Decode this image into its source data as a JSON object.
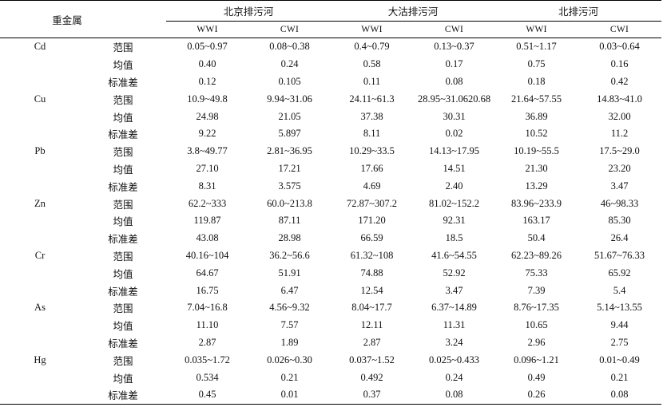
{
  "header": {
    "metal_col": "重金属",
    "groups": [
      "北京排污河",
      "大沽排污河",
      "北排污河"
    ],
    "subcols": [
      "WWI",
      "CWI",
      "WWI",
      "CWI",
      "WWI",
      "CWI"
    ]
  },
  "stat_labels": [
    "范围",
    "均值",
    "标准差"
  ],
  "rows": [
    {
      "metal": "Cd",
      "range": [
        "0.05~0.97",
        "0.08~0.38",
        "0.4~0.79",
        "0.13~0.37",
        "0.51~1.17",
        "0.03~0.64"
      ],
      "mean": [
        "0.40",
        "0.24",
        "0.58",
        "0.17",
        "0.75",
        "0.16"
      ],
      "sd": [
        "0.12",
        "0.105",
        "0.11",
        "0.08",
        "0.18",
        "0.42"
      ]
    },
    {
      "metal": "Cu",
      "range": [
        "10.9~49.8",
        "9.94~31.06",
        "24.11~61.3",
        "28.95~31.0620.68",
        "21.64~57.55",
        "14.83~41.0"
      ],
      "mean": [
        "24.98",
        "21.05",
        "37.38",
        "30.31",
        "36.89",
        "32.00"
      ],
      "sd": [
        "9.22",
        "5.897",
        "8.11",
        "0.02",
        "10.52",
        "11.2"
      ]
    },
    {
      "metal": "Pb",
      "range": [
        "3.8~49.77",
        "2.81~36.95",
        "10.29~33.5",
        "14.13~17.95",
        "10.19~55.5",
        "17.5~29.0"
      ],
      "mean": [
        "27.10",
        "17.21",
        "17.66",
        "14.51",
        "21.30",
        "23.20"
      ],
      "sd": [
        "8.31",
        "3.575",
        "4.69",
        "2.40",
        "13.29",
        "3.47"
      ]
    },
    {
      "metal": "Zn",
      "range": [
        "62.2~333",
        "60.0~213.8",
        "72.87~307.2",
        "81.02~152.2",
        "83.96~233.9",
        "46~98.33"
      ],
      "mean": [
        "119.87",
        "87.11",
        "171.20",
        "92.31",
        "163.17",
        "85.30"
      ],
      "sd": [
        "43.08",
        "28.98",
        "66.59",
        "18.5",
        "50.4",
        "26.4"
      ]
    },
    {
      "metal": "Cr",
      "range": [
        "40.16~104",
        "36.2~56.6",
        "61.32~108",
        "41.6~54.55",
        "62.23~89.26",
        "51.67~76.33"
      ],
      "mean": [
        "64.67",
        "51.91",
        "74.88",
        "52.92",
        "75.33",
        "65.92"
      ],
      "sd": [
        "16.75",
        "6.47",
        "12.54",
        "3.47",
        "7.39",
        "5.4"
      ]
    },
    {
      "metal": "As",
      "range": [
        "7.04~16.8",
        "4.56~9.32",
        "8.04~17.7",
        "6.37~14.89",
        "8.76~17.35",
        "5.14~13.55"
      ],
      "mean": [
        "11.10",
        "7.57",
        "12.11",
        "11.31",
        "10.65",
        "9.44"
      ],
      "sd": [
        "2.87",
        "1.89",
        "2.87",
        "3.24",
        "2.96",
        "2.75"
      ]
    },
    {
      "metal": "Hg",
      "range": [
        "0.035~1.72",
        "0.026~0.30",
        "0.037~1.52",
        "0.025~0.433",
        "0.096~1.21",
        "0.01~0.49"
      ],
      "mean": [
        "0.534",
        "0.21",
        "0.492",
        "0.24",
        "0.49",
        "0.21"
      ],
      "sd": [
        "0.45",
        "0.01",
        "0.37",
        "0.08",
        "0.26",
        "0.08"
      ]
    }
  ]
}
